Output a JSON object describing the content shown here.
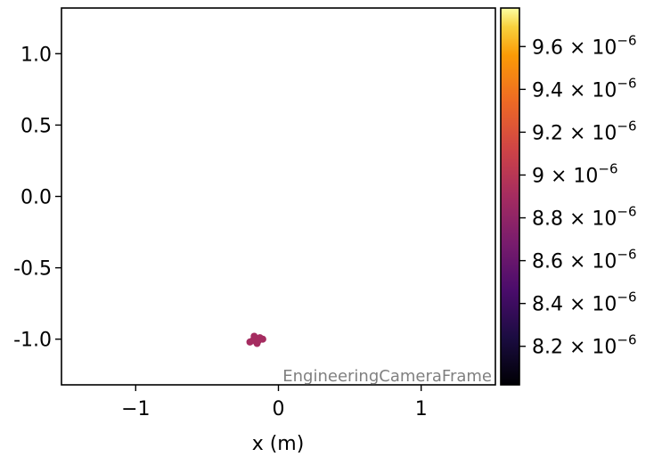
{
  "chart_data": {
    "type": "scatter",
    "xlabel": "x  (m)",
    "ylabel": "",
    "xlim": [
      -1.52,
      1.52
    ],
    "ylim": [
      -1.32,
      1.32
    ],
    "x_ticks": [
      {
        "value": -1,
        "label": "−1"
      },
      {
        "value": 0,
        "label": "0"
      },
      {
        "value": 1,
        "label": "1"
      }
    ],
    "y_ticks": [
      {
        "value": 1.0,
        "label": "1.0"
      },
      {
        "value": 0.5,
        "label": "0.5"
      },
      {
        "value": 0.0,
        "label": "0.0"
      },
      {
        "value": -0.5,
        "label": "-0.5"
      },
      {
        "value": -1.0,
        "label": "-1.0"
      }
    ],
    "annotation": "EngineeringCameraFrame",
    "colormap": "inferno",
    "color_range": [
      8.02e-06,
      9.78e-06
    ],
    "colorbar_ticks": [
      {
        "value": 8.2e-06,
        "mantissa": "8.2",
        "exponent": "−6"
      },
      {
        "value": 8.4e-06,
        "mantissa": "8.4",
        "exponent": "−6"
      },
      {
        "value": 8.6e-06,
        "mantissa": "8.6",
        "exponent": "−6"
      },
      {
        "value": 8.8e-06,
        "mantissa": "8.8",
        "exponent": "−6"
      },
      {
        "value": 9e-06,
        "mantissa": "9",
        "exponent": "−6"
      },
      {
        "value": 9.2e-06,
        "mantissa": "9.2",
        "exponent": "−6"
      },
      {
        "value": 9.4e-06,
        "mantissa": "9.4",
        "exponent": "−6"
      },
      {
        "value": 9.6e-06,
        "mantissa": "9.6",
        "exponent": "−6"
      }
    ],
    "points": [
      {
        "x": -0.2,
        "y": -1.02,
        "c": 8.9e-06
      },
      {
        "x": -0.17,
        "y": -0.98,
        "c": 8.9e-06
      },
      {
        "x": -0.13,
        "y": -0.99,
        "c": 8.9e-06
      },
      {
        "x": -0.15,
        "y": -1.03,
        "c": 8.9e-06
      },
      {
        "x": -0.11,
        "y": -1.0,
        "c": 8.9e-06
      },
      {
        "x": -0.18,
        "y": -1.01,
        "c": 8.9e-06
      },
      {
        "x": -0.14,
        "y": -1.01,
        "c": 8.9e-06
      }
    ],
    "grid": false
  }
}
